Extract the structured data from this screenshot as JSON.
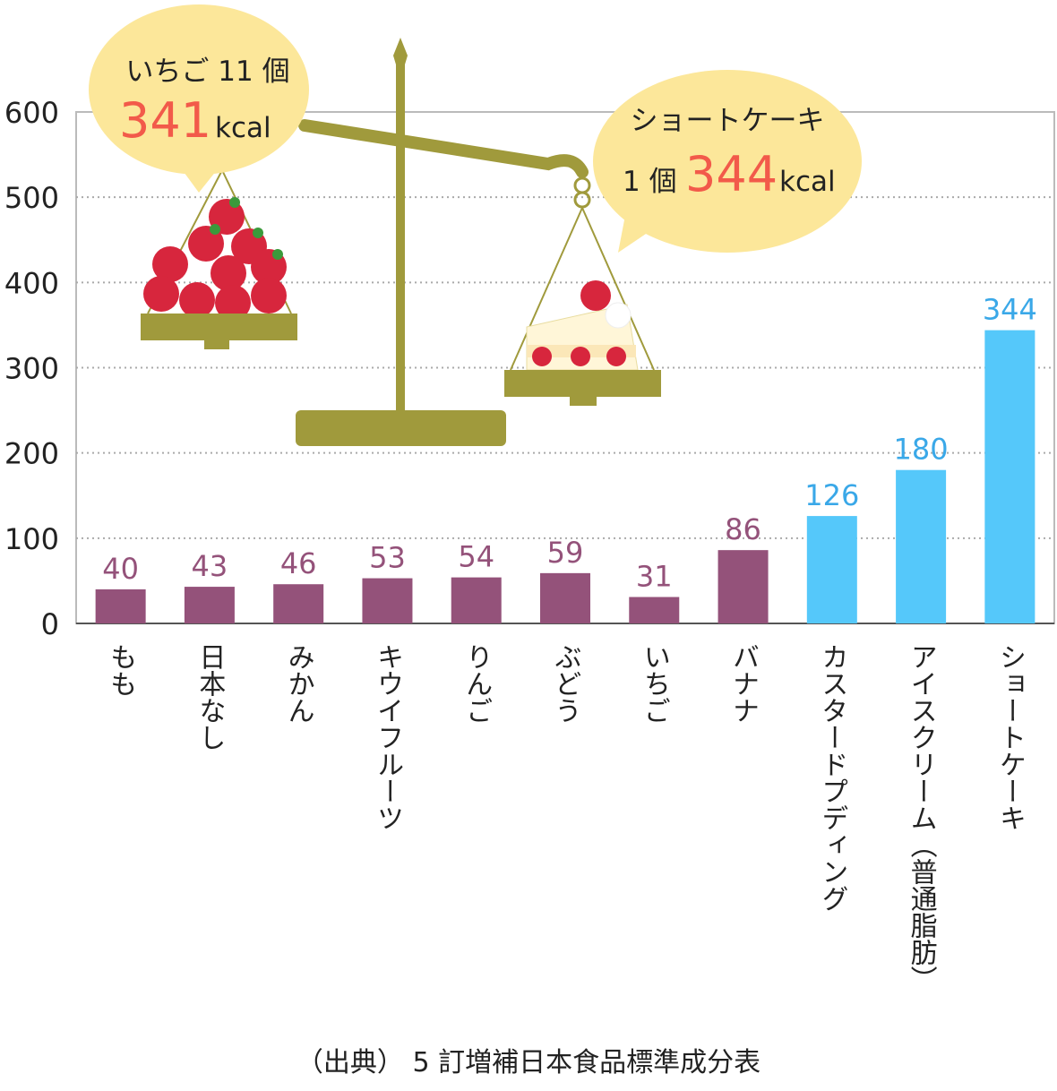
{
  "chart_data": {
    "type": "bar",
    "categories": [
      "もも",
      "日本なし",
      "みかん",
      "キウイフルーツ",
      "りんご",
      "ぶどう",
      "いちご",
      "バナナ",
      "カスタードプディング",
      "アイスクリーム（普通脂肪）",
      "ショートケーキ"
    ],
    "values": [
      40,
      43,
      46,
      53,
      54,
      59,
      31,
      86,
      126,
      180,
      344
    ],
    "colors": [
      "#94527a",
      "#94527a",
      "#94527a",
      "#94527a",
      "#94527a",
      "#94527a",
      "#94527a",
      "#94527a",
      "#55c8fa",
      "#55c8fa",
      "#55c8fa"
    ],
    "label_colors": [
      "#94527a",
      "#94527a",
      "#94527a",
      "#94527a",
      "#94527a",
      "#94527a",
      "#94527a",
      "#94527a",
      "#3aa8e8",
      "#3aa8e8",
      "#3aa8e8"
    ],
    "ylim": [
      0,
      600
    ],
    "yticks": [
      0,
      100,
      200,
      300,
      400,
      500,
      600
    ],
    "grid": true,
    "annotations": [
      {
        "label": "いちご 11 個",
        "value": 341,
        "unit": "kcal"
      },
      {
        "label": "ショートケーキ",
        "count": "1 個",
        "value": 344,
        "unit": "kcal"
      }
    ],
    "source": "（出典） 5 訂増補日本食品標準成分表"
  }
}
